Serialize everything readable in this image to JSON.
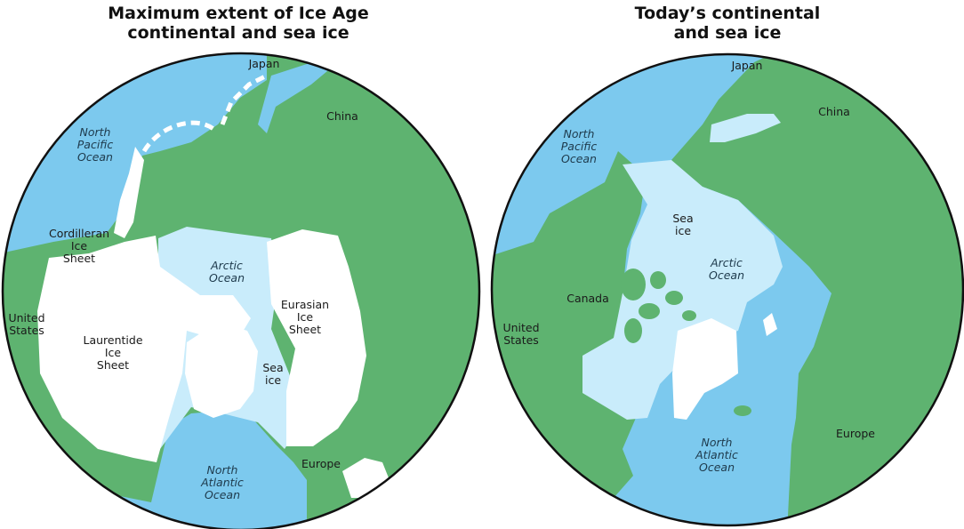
{
  "colors": {
    "ocean": "#7cc9ee",
    "land": "#5eb370",
    "sea_ice": "#c9ecfb",
    "ice_sheet": "#ffffff",
    "outline": "#111111"
  },
  "left_map": {
    "title": [
      "Maximum extent of Ice Age",
      "continental and sea ice"
    ],
    "labels": {
      "japan": "Japan",
      "china": "China",
      "north_pacific": [
        "North",
        "Pacific",
        "Ocean"
      ],
      "cordilleran": [
        "Cordilleran",
        "Ice",
        "Sheet"
      ],
      "united_states": [
        "United",
        "States"
      ],
      "laurentide": [
        "Laurentide",
        "Ice",
        "Sheet"
      ],
      "arctic": [
        "Arctic",
        "Ocean"
      ],
      "eurasian": [
        "Eurasian",
        "Ice",
        "Sheet"
      ],
      "sea_ice": [
        "Sea",
        "ice"
      ],
      "europe": "Europe",
      "north_atlantic": [
        "North",
        "Atlantic",
        "Ocean"
      ]
    }
  },
  "right_map": {
    "title": [
      "Today’s continental",
      "and sea ice"
    ],
    "labels": {
      "japan": "Japan",
      "china": "China",
      "north_pacific": [
        "North",
        "Pacific",
        "Ocean"
      ],
      "sea_ice": [
        "Sea",
        "ice"
      ],
      "arctic": [
        "Arctic",
        "Ocean"
      ],
      "canada": "Canada",
      "united_states": [
        "United",
        "States"
      ],
      "north_atlantic": [
        "North",
        "Atlantic",
        "Ocean"
      ],
      "europe": "Europe"
    }
  }
}
